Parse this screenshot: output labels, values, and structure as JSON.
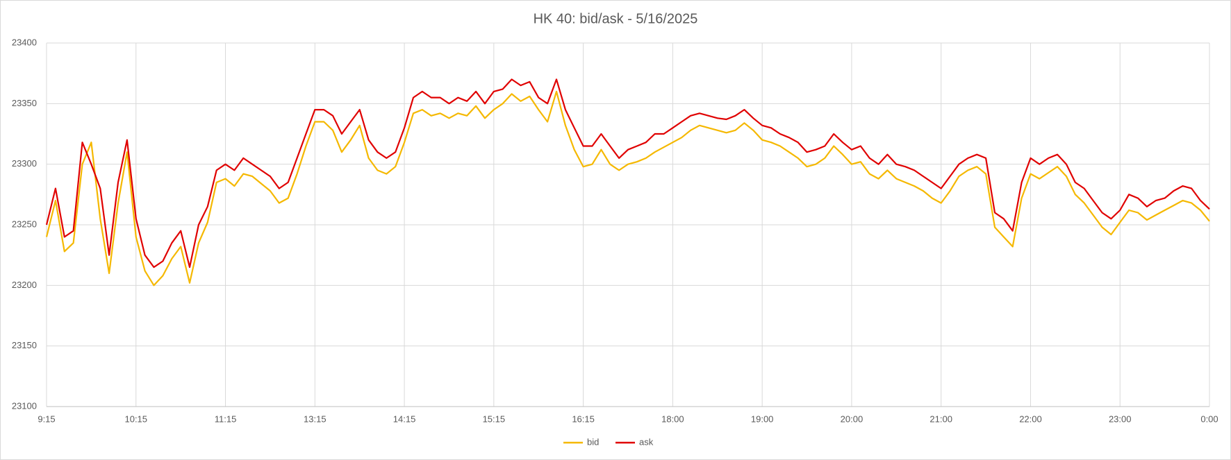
{
  "chart_data": {
    "type": "line",
    "title": "HK 40: bid/ask - 5/16/2025",
    "categories": [
      "9:15",
      null,
      null,
      null,
      null,
      null,
      null,
      null,
      null,
      null,
      "10:15",
      null,
      null,
      null,
      null,
      null,
      null,
      null,
      null,
      null,
      "11:15",
      null,
      null,
      null,
      null,
      null,
      null,
      null,
      null,
      null,
      "13:15",
      null,
      null,
      null,
      null,
      null,
      null,
      null,
      null,
      null,
      "14:15",
      null,
      null,
      null,
      null,
      null,
      null,
      null,
      null,
      null,
      "15:15",
      null,
      null,
      null,
      null,
      null,
      null,
      null,
      null,
      null,
      "16:15",
      null,
      null,
      null,
      null,
      null,
      null,
      null,
      null,
      null,
      "18:00",
      null,
      null,
      null,
      null,
      null,
      null,
      null,
      null,
      null,
      "19:00",
      null,
      null,
      null,
      null,
      null,
      null,
      null,
      null,
      null,
      "20:00",
      null,
      null,
      null,
      null,
      null,
      null,
      null,
      null,
      null,
      "21:00",
      null,
      null,
      null,
      null,
      null,
      null,
      null,
      null,
      null,
      "22:00",
      null,
      null,
      null,
      null,
      null,
      null,
      null,
      null,
      null,
      "23:00",
      null,
      null,
      null,
      null,
      null,
      null,
      null,
      null,
      null,
      "0:00"
    ],
    "series": [
      {
        "name": "bid",
        "color": "#f5b800",
        "values": [
          23240,
          23270,
          23228,
          23235,
          23300,
          23318,
          23255,
          23210,
          23268,
          23310,
          23240,
          23212,
          23200,
          23208,
          23222,
          23232,
          23202,
          23235,
          23252,
          23285,
          23288,
          23282,
          23292,
          23290,
          23284,
          23278,
          23268,
          23272,
          23292,
          23315,
          23335,
          23335,
          23328,
          23310,
          23320,
          23332,
          23305,
          23295,
          23292,
          23298,
          23318,
          23342,
          23345,
          23340,
          23342,
          23338,
          23342,
          23340,
          23348,
          23338,
          23345,
          23350,
          23358,
          23352,
          23356,
          23345,
          23335,
          23360,
          23332,
          23312,
          23298,
          23300,
          23312,
          23300,
          23295,
          23300,
          23302,
          23305,
          23310,
          23314,
          23318,
          23322,
          23328,
          23332,
          23330,
          23328,
          23326,
          23328,
          23334,
          23328,
          23320,
          23318,
          23315,
          23310,
          23305,
          23298,
          23300,
          23305,
          23315,
          23308,
          23300,
          23302,
          23292,
          23288,
          23295,
          23288,
          23285,
          23282,
          23278,
          23272,
          23268,
          23278,
          23290,
          23295,
          23298,
          23292,
          23248,
          23240,
          23232,
          23272,
          23292,
          23288,
          23293,
          23298,
          23290,
          23275,
          23268,
          23258,
          23248,
          23242,
          23252,
          23262,
          23260,
          23254,
          23258,
          23262,
          23266,
          23270,
          23268,
          23262,
          23253
        ]
      },
      {
        "name": "ask",
        "color": "#e00000",
        "values": [
          23250,
          23280,
          23240,
          23245,
          23318,
          23300,
          23280,
          23225,
          23285,
          23320,
          23255,
          23225,
          23215,
          23220,
          23235,
          23245,
          23215,
          23250,
          23265,
          23295,
          23300,
          23295,
          23305,
          23300,
          23295,
          23290,
          23280,
          23285,
          23305,
          23325,
          23345,
          23345,
          23340,
          23325,
          23335,
          23345,
          23320,
          23310,
          23305,
          23310,
          23330,
          23355,
          23360,
          23355,
          23355,
          23350,
          23355,
          23352,
          23360,
          23350,
          23360,
          23362,
          23370,
          23365,
          23368,
          23355,
          23350,
          23370,
          23345,
          23330,
          23315,
          23315,
          23325,
          23315,
          23305,
          23312,
          23315,
          23318,
          23325,
          23325,
          23330,
          23335,
          23340,
          23342,
          23340,
          23338,
          23337,
          23340,
          23345,
          23338,
          23332,
          23330,
          23325,
          23322,
          23318,
          23310,
          23312,
          23315,
          23325,
          23318,
          23312,
          23315,
          23305,
          23300,
          23308,
          23300,
          23298,
          23295,
          23290,
          23285,
          23280,
          23290,
          23300,
          23305,
          23308,
          23305,
          23260,
          23255,
          23245,
          23285,
          23305,
          23300,
          23305,
          23308,
          23300,
          23285,
          23280,
          23270,
          23260,
          23255,
          23262,
          23275,
          23272,
          23265,
          23270,
          23272,
          23278,
          23282,
          23280,
          23270,
          23263
        ]
      }
    ],
    "ylim": [
      23100,
      23400
    ],
    "yticks": [
      23100,
      23150,
      23200,
      23250,
      23300,
      23350,
      23400
    ],
    "grid": true,
    "legend": "bottom"
  }
}
